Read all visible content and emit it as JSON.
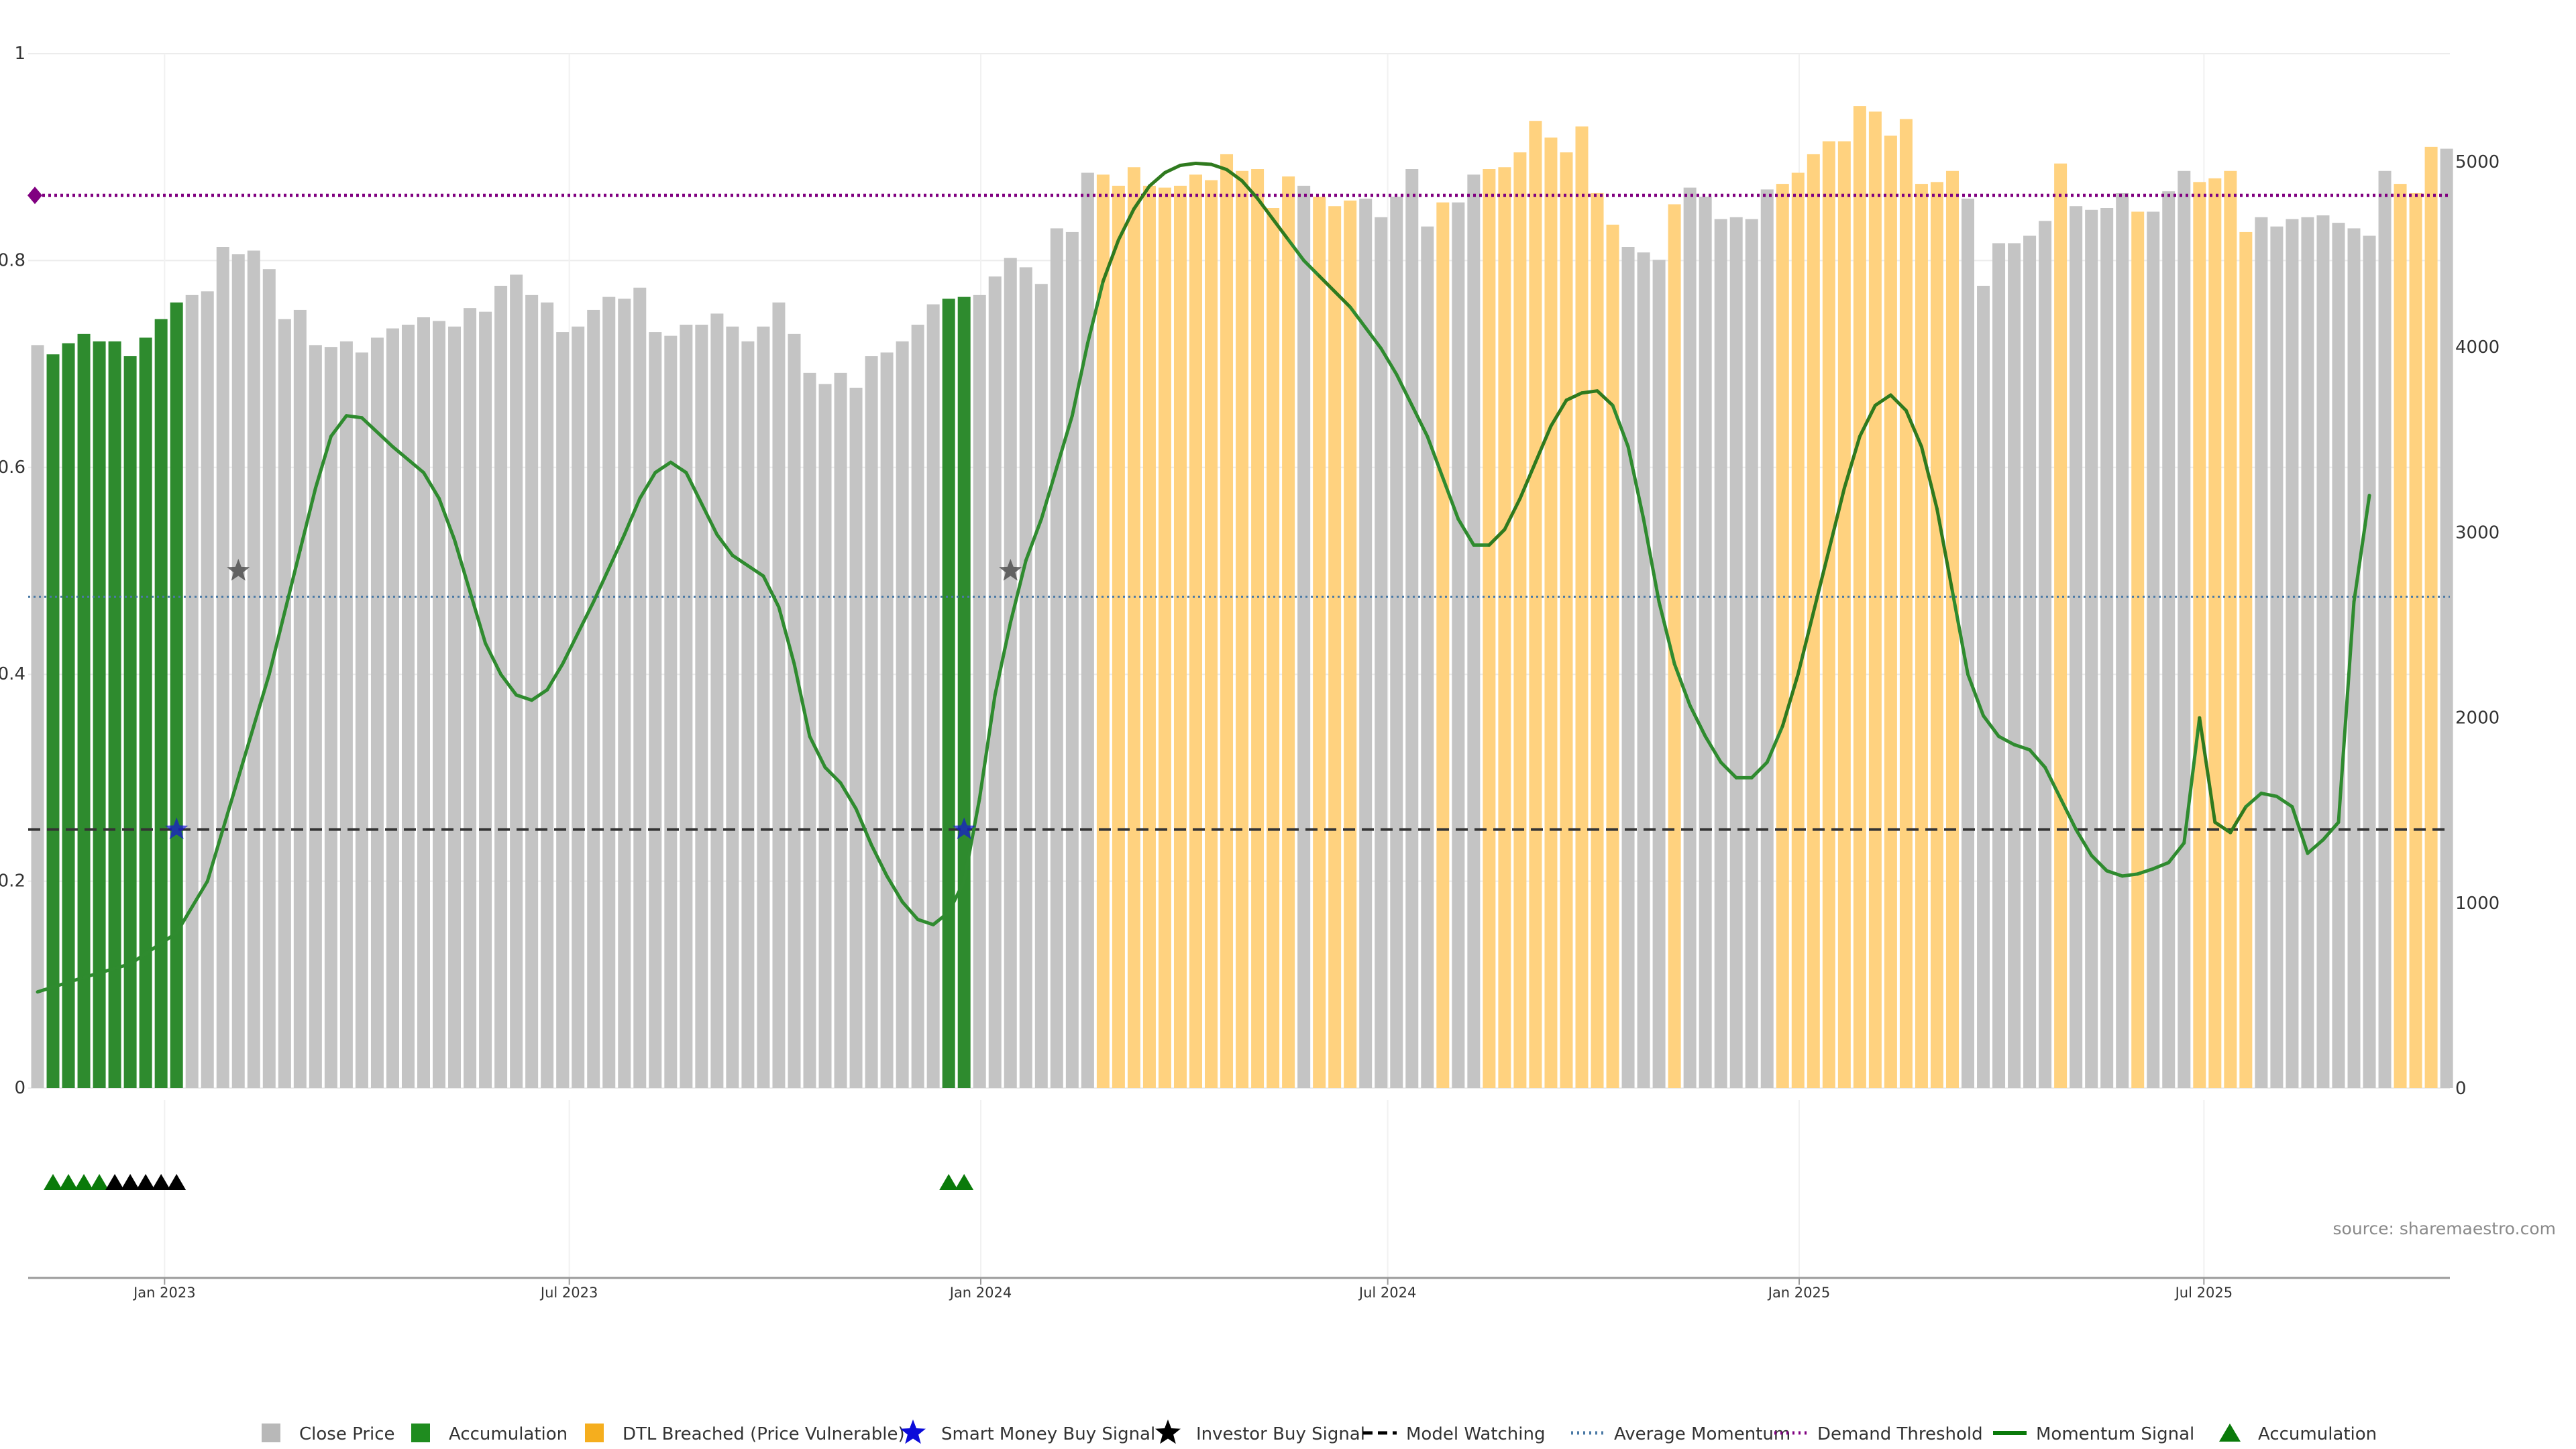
{
  "chart_data": {
    "type": "bar",
    "source": "source: sharemaestro.com",
    "left_axis": {
      "ticks": [
        "0",
        "0.2",
        "0.4",
        "0.6",
        "0.8",
        "1"
      ],
      "values": [
        0,
        0.2,
        0.4,
        0.6,
        0.8,
        1
      ],
      "ylim": [
        0,
        1
      ]
    },
    "right_axis": {
      "ticks": [
        "0",
        "1000",
        "2000",
        "3000",
        "4000",
        "5000"
      ],
      "values": [
        0,
        1000,
        2000,
        3000,
        4000,
        5000
      ],
      "ylim": [
        0,
        5590
      ]
    },
    "x_axis": {
      "start": "2022-11-01",
      "end": "2025-10-19",
      "ticks": [
        {
          "label": "Jan 2023",
          "date": "2023-01-01"
        },
        {
          "label": "Jul 2023",
          "date": "2023-07-01"
        },
        {
          "label": "Jan 2024",
          "date": "2024-01-01"
        },
        {
          "label": "Jul 2024",
          "date": "2024-07-01"
        },
        {
          "label": "Jan 2025",
          "date": "2025-01-01"
        },
        {
          "label": "Jul 2025",
          "date": "2025-07-01"
        }
      ]
    },
    "bar_dates_weekly_from": "2022-11-01",
    "close_prices": [
      4010,
      3960,
      4020,
      4070,
      4030,
      4030,
      3950,
      4050,
      4150,
      4240,
      4280,
      4300,
      4540,
      4500,
      4520,
      4420,
      4150,
      4200,
      4010,
      4000,
      4030,
      3970,
      4050,
      4100,
      4120,
      4160,
      4140,
      4110,
      4210,
      4190,
      4330,
      4390,
      4280,
      4240,
      4080,
      4110,
      4200,
      4270,
      4260,
      4320,
      4080,
      4060,
      4120,
      4120,
      4180,
      4110,
      4030,
      4110,
      4240,
      4070,
      3860,
      3800,
      3860,
      3780,
      3950,
      3970,
      4030,
      4120,
      4230,
      4260,
      4270,
      4280,
      4380,
      4480,
      4430,
      4340,
      4640,
      4620,
      4940,
      4930,
      4870,
      4970,
      4870,
      4860,
      4870,
      4930,
      4900,
      5040,
      4950,
      4960,
      4750,
      4920,
      4870,
      4810,
      4760,
      4790,
      4800,
      4700,
      4810,
      4960,
      4650,
      4780,
      4780,
      4930,
      4960,
      4970,
      5050,
      5220,
      5130,
      5050,
      5190,
      4830,
      4660,
      4540,
      4510,
      4470,
      4770,
      4860,
      4810,
      4690,
      4700,
      4690,
      4850,
      4880,
      4940,
      5040,
      5110,
      5110,
      5300,
      5270,
      5140,
      5230,
      4880,
      4890,
      4950,
      4800,
      4330,
      4560,
      4560,
      4600,
      4680,
      4990,
      4760,
      4740,
      4750,
      4830,
      4730,
      4730,
      4840,
      4950,
      4890,
      4910,
      4950,
      4620,
      4700,
      4650,
      4690,
      4700,
      4710,
      4670,
      4640,
      4600,
      4950,
      4880,
      4830,
      5080,
      5070
    ],
    "accumulation_bar_indices": [
      1,
      2,
      3,
      4,
      5,
      6,
      7,
      8,
      9,
      59,
      60
    ],
    "dtl_breached_bar_indices": [
      69,
      70,
      71,
      72,
      73,
      74,
      75,
      76,
      77,
      78,
      79,
      80,
      81,
      83,
      84,
      85,
      91,
      94,
      95,
      96,
      97,
      98,
      99,
      100,
      101,
      102,
      106,
      113,
      114,
      115,
      116,
      117,
      118,
      119,
      120,
      121,
      122,
      123,
      124,
      131,
      136,
      140,
      141,
      142,
      143,
      153,
      154,
      155
    ],
    "lines": {
      "demand_threshold": 0.863,
      "average_momentum": 0.475,
      "model_watching": 0.25
    },
    "momentum_signal": [
      [
        0,
        0.093
      ],
      [
        3,
        0.107
      ],
      [
        6,
        0.12
      ],
      [
        9,
        0.15
      ],
      [
        11,
        0.2
      ],
      [
        13,
        0.3
      ],
      [
        15,
        0.4
      ],
      [
        17,
        0.52
      ],
      [
        18,
        0.58
      ],
      [
        19,
        0.63
      ],
      [
        20,
        0.65
      ],
      [
        21,
        0.648
      ],
      [
        23,
        0.62
      ],
      [
        25,
        0.595
      ],
      [
        26,
        0.57
      ],
      [
        27,
        0.53
      ],
      [
        28,
        0.48
      ],
      [
        29,
        0.43
      ],
      [
        30,
        0.4
      ],
      [
        31,
        0.38
      ],
      [
        32,
        0.375
      ],
      [
        33,
        0.385
      ],
      [
        34,
        0.41
      ],
      [
        36,
        0.47
      ],
      [
        38,
        0.535
      ],
      [
        39,
        0.57
      ],
      [
        40,
        0.595
      ],
      [
        41,
        0.605
      ],
      [
        42,
        0.595
      ],
      [
        43,
        0.565
      ],
      [
        44,
        0.535
      ],
      [
        45,
        0.515
      ],
      [
        46,
        0.505
      ],
      [
        47,
        0.495
      ],
      [
        48,
        0.465
      ],
      [
        49,
        0.41
      ],
      [
        50,
        0.34
      ],
      [
        51,
        0.31
      ],
      [
        52,
        0.295
      ],
      [
        53,
        0.27
      ],
      [
        54,
        0.235
      ],
      [
        55,
        0.205
      ],
      [
        56,
        0.18
      ],
      [
        57,
        0.163
      ],
      [
        58,
        0.158
      ],
      [
        59,
        0.17
      ],
      [
        60,
        0.2
      ],
      [
        61,
        0.28
      ],
      [
        62,
        0.38
      ],
      [
        63,
        0.45
      ],
      [
        64,
        0.51
      ],
      [
        65,
        0.55
      ],
      [
        66,
        0.6
      ],
      [
        67,
        0.65
      ],
      [
        68,
        0.72
      ],
      [
        69,
        0.78
      ],
      [
        70,
        0.82
      ],
      [
        71,
        0.85
      ],
      [
        72,
        0.872
      ],
      [
        73,
        0.885
      ],
      [
        74,
        0.892
      ],
      [
        75,
        0.894
      ],
      [
        76,
        0.893
      ],
      [
        77,
        0.888
      ],
      [
        78,
        0.877
      ],
      [
        79,
        0.86
      ],
      [
        80,
        0.84
      ],
      [
        81,
        0.82
      ],
      [
        82,
        0.8
      ],
      [
        83,
        0.785
      ],
      [
        84,
        0.77
      ],
      [
        85,
        0.755
      ],
      [
        86,
        0.735
      ],
      [
        87,
        0.715
      ],
      [
        88,
        0.69
      ],
      [
        89,
        0.66
      ],
      [
        90,
        0.63
      ],
      [
        91,
        0.59
      ],
      [
        92,
        0.55
      ],
      [
        93,
        0.525
      ],
      [
        94,
        0.525
      ],
      [
        95,
        0.54
      ],
      [
        96,
        0.57
      ],
      [
        97,
        0.605
      ],
      [
        98,
        0.64
      ],
      [
        99,
        0.665
      ],
      [
        100,
        0.672
      ],
      [
        101,
        0.674
      ],
      [
        102,
        0.66
      ],
      [
        103,
        0.62
      ],
      [
        104,
        0.55
      ],
      [
        105,
        0.47
      ],
      [
        106,
        0.41
      ],
      [
        107,
        0.37
      ],
      [
        108,
        0.34
      ],
      [
        109,
        0.315
      ],
      [
        110,
        0.3
      ],
      [
        111,
        0.3
      ],
      [
        112,
        0.315
      ],
      [
        113,
        0.35
      ],
      [
        114,
        0.4
      ],
      [
        115,
        0.46
      ],
      [
        116,
        0.52
      ],
      [
        117,
        0.58
      ],
      [
        118,
        0.63
      ],
      [
        119,
        0.66
      ],
      [
        120,
        0.67
      ],
      [
        121,
        0.655
      ],
      [
        122,
        0.62
      ],
      [
        123,
        0.56
      ],
      [
        124,
        0.48
      ],
      [
        125,
        0.4
      ],
      [
        126,
        0.36
      ],
      [
        127,
        0.34
      ],
      [
        128,
        0.332
      ],
      [
        129,
        0.327
      ],
      [
        130,
        0.31
      ],
      [
        131,
        0.28
      ],
      [
        132,
        0.25
      ],
      [
        133,
        0.225
      ],
      [
        134,
        0.21
      ],
      [
        135,
        0.205
      ],
      [
        136,
        0.207
      ],
      [
        137,
        0.212
      ],
      [
        138,
        0.218
      ],
      [
        139,
        0.237
      ],
      [
        140,
        0.358
      ],
      [
        141,
        0.257
      ],
      [
        142,
        0.247
      ],
      [
        143,
        0.272
      ],
      [
        144,
        0.285
      ],
      [
        145,
        0.282
      ],
      [
        146,
        0.272
      ],
      [
        147,
        0.227
      ],
      [
        148,
        0.24
      ],
      [
        149,
        0.257
      ],
      [
        150,
        0.47
      ],
      [
        151,
        0.573
      ]
    ],
    "smart_money_buy_signals": [
      [
        9,
        0.25
      ],
      [
        60,
        0.25
      ]
    ],
    "investor_buy_signals": [
      [
        13,
        0.5
      ],
      [
        63,
        0.5
      ]
    ],
    "accumulation_markers": [
      [
        1,
        "green"
      ],
      [
        2,
        "green"
      ],
      [
        3,
        "green"
      ],
      [
        4,
        "green"
      ],
      [
        5,
        "black"
      ],
      [
        6,
        "black"
      ],
      [
        7,
        "black"
      ],
      [
        8,
        "black"
      ],
      [
        9,
        "black"
      ],
      [
        59,
        "green"
      ],
      [
        60,
        "green"
      ]
    ],
    "colors": {
      "close_price": "#c4c4c4",
      "accumulation": "#2e8b2e",
      "dtl_breached": "#ffd27f",
      "smart_money": "#1515d6",
      "investor": "#4a4a4a",
      "model_watching": "#333333",
      "average_momentum": "#4a79a5",
      "demand_threshold": "#800080",
      "momentum_line": "#2f8b2f",
      "momentum_line_hot": "#2f7a1e",
      "marker_green": "#0a7a0a",
      "marker_black": "#000000"
    },
    "legend": [
      {
        "label": "Close Price",
        "symbol": "square",
        "color": "#b8b8b8"
      },
      {
        "label": "Accumulation",
        "symbol": "square",
        "color": "#1f8c1f"
      },
      {
        "label": "DTL Breached (Price Vulnerable)",
        "symbol": "square",
        "color": "#f5ae1e"
      },
      {
        "label": "Smart Money Buy Signal",
        "symbol": "star",
        "color": "#0b0bd9"
      },
      {
        "label": "Investor Buy Signal",
        "symbol": "star",
        "color": "#000000"
      },
      {
        "label": "Model Watching",
        "symbol": "dash",
        "color": "#000000"
      },
      {
        "label": "Average Momentum",
        "symbol": "dot",
        "color": "#4a79a5"
      },
      {
        "label": "Demand Threshold",
        "symbol": "dot",
        "color": "#800080"
      },
      {
        "label": "Momentum Signal",
        "symbol": "line",
        "color": "#0a7a0a"
      },
      {
        "label": "Accumulation",
        "symbol": "triangle",
        "color": "#0a7a0a"
      }
    ]
  }
}
